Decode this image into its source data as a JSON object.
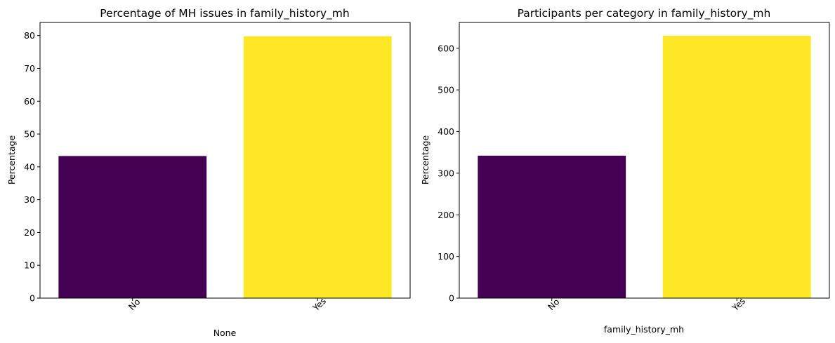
{
  "chart_data": [
    {
      "type": "bar",
      "title": "Percentage of MH issues in family_history_mh",
      "xlabel": "None",
      "ylabel": "Percentage",
      "categories": [
        "No",
        "Yes"
      ],
      "values": [
        43.3,
        79.8
      ],
      "colors": [
        "#440154",
        "#fde725"
      ],
      "ylim": [
        0,
        84
      ],
      "yticks": [
        0,
        10,
        20,
        30,
        40,
        50,
        60,
        70,
        80
      ],
      "grid": false,
      "xtick_rotation": 45
    },
    {
      "type": "bar",
      "title": "Participants per category in family_history_mh",
      "xlabel": "family_history_mh",
      "ylabel": "Percentage",
      "categories": [
        "No",
        "Yes"
      ],
      "values": [
        342,
        630
      ],
      "colors": [
        "#440154",
        "#fde725"
      ],
      "ylim": [
        0,
        662
      ],
      "yticks": [
        0,
        100,
        200,
        300,
        400,
        500,
        600
      ],
      "grid": false,
      "xtick_rotation": 45
    }
  ]
}
